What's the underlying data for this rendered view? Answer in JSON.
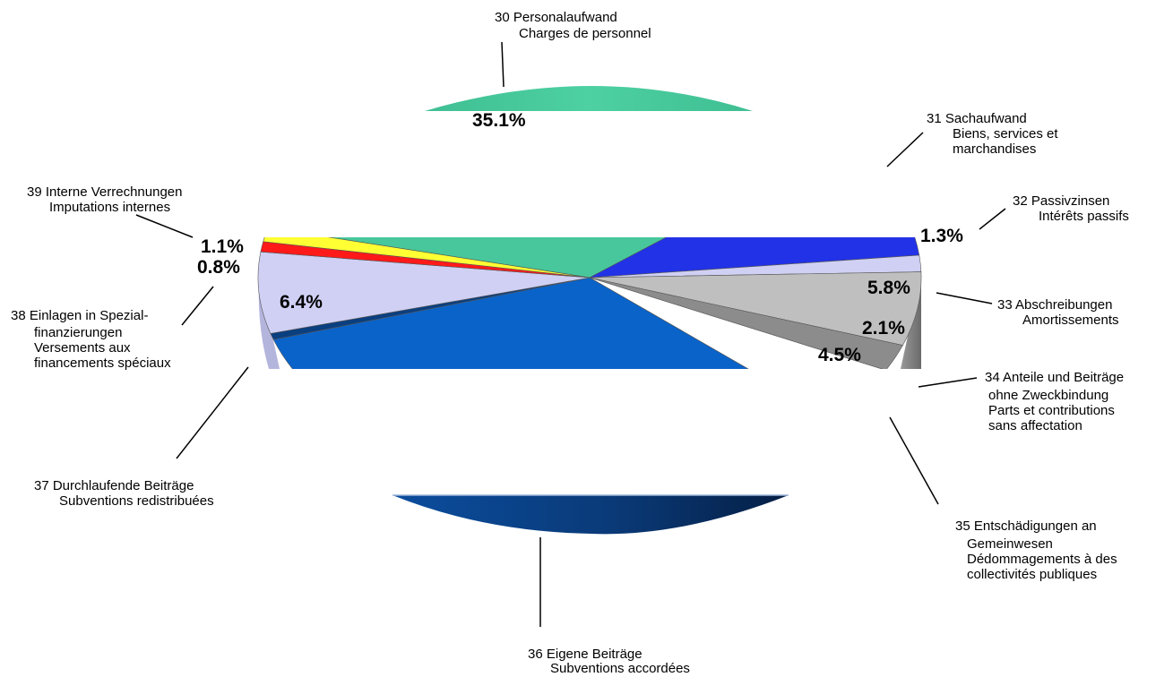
{
  "chart_data": {
    "type": "pie",
    "title": "",
    "slices": [
      {
        "code": "30",
        "line1": "30 Personalaufwand",
        "line2": "Charges de personnel",
        "line3": "",
        "line4": "",
        "value": 35.1,
        "value_label": "35.1%",
        "color": "#47c79b"
      },
      {
        "code": "31",
        "line1": "31 Sachaufwand",
        "line2": "Biens, services et",
        "line3": "marchandises",
        "line4": "",
        "value": 9.5,
        "value_label": "",
        "color": "#2232e6"
      },
      {
        "code": "32",
        "line1": "32 Passivzinsen",
        "line2": "Intérêts passifs",
        "line3": "",
        "line4": "",
        "value": 1.3,
        "value_label": "1.3%",
        "color": "#cfd0f3"
      },
      {
        "code": "33",
        "line1": "33 Abschreibungen",
        "line2": "Amortissements",
        "line3": "",
        "line4": "",
        "value": 5.8,
        "value_label": "5.8%",
        "color": "#bfbfbf"
      },
      {
        "code": "34",
        "line1": "34 Anteile und Beiträge",
        "line2": "ohne Zweckbindung",
        "line3": "Parts et contributions",
        "line4": "sans affectation",
        "value": 2.1,
        "value_label": "2.1%",
        "color": "#8c8c8c"
      },
      {
        "code": "35",
        "line1": "35 Entschädigungen an",
        "line2": "Gemeinwesen",
        "line3": "Dédommagements à des",
        "line4": "collectivités publiques",
        "value": 4.5,
        "value_label": "4.5%",
        "color": "#ffffff"
      },
      {
        "code": "36",
        "line1": "36 Eigene Beiträge",
        "line2": "Subventions accordées",
        "line3": "",
        "line4": "",
        "value": 33.4,
        "value_label": "",
        "color": "#0a63c9"
      },
      {
        "code": "37",
        "line1": "37 Durchlaufende Beiträge",
        "line2": "Subventions redistribuées",
        "line3": "",
        "line4": "",
        "value": 0.5,
        "value_label": "",
        "color": "#0a3f80"
      },
      {
        "code": "38",
        "line1": "38 Einlagen in Spezial-",
        "line2": "finanzierungen",
        "line3": "Versements aux",
        "line4": "financements spéciaux",
        "value": 6.4,
        "value_label": "6.4%",
        "color": "#cfd0f3"
      },
      {
        "code": "39a",
        "line1": "",
        "line2": "",
        "line3": "",
        "line4": "",
        "value": 0.8,
        "value_label": "0.8%",
        "color": "#ff1a1a"
      },
      {
        "code": "39",
        "line1": "39 Interne Verrechnungen",
        "line2": "Imputations internes",
        "line3": "",
        "line4": "",
        "value": 1.1,
        "value_label": "1.1%",
        "color": "#ffff33"
      }
    ]
  }
}
